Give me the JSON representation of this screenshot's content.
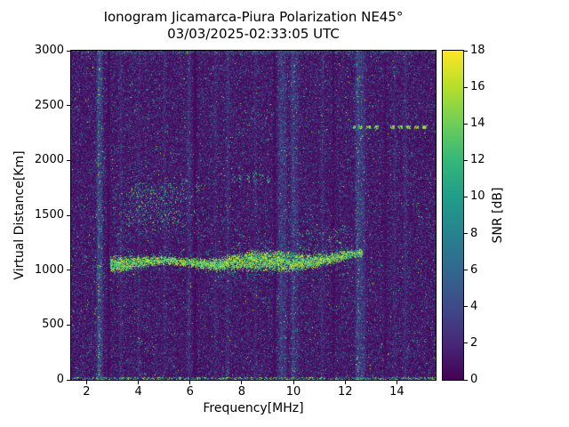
{
  "figure": {
    "title": "Ionogram Jicamarca-Piura Polarization NE45°",
    "subtitle": "03/03/2025-02:33:05 UTC"
  },
  "chart_data": {
    "type": "heatmap",
    "title": "Ionogram Jicamarca-Piura Polarization NE45°",
    "subtitle": "03/03/2025-02:33:05 UTC",
    "xlabel": "Frequency[MHz]",
    "ylabel": "Virtual Distance[Km]",
    "colorbar_label": "SNR [dB]",
    "xlim": [
      1.4,
      15.5
    ],
    "ylim": [
      0,
      3000
    ],
    "snr_range_db": [
      0,
      18
    ],
    "x_ticks": [
      2,
      4,
      6,
      8,
      10,
      12,
      14
    ],
    "y_ticks": [
      0,
      500,
      1000,
      1500,
      2000,
      2500,
      3000
    ],
    "colorbar_ticks": [
      0,
      2,
      4,
      6,
      8,
      10,
      12,
      14,
      16,
      18
    ],
    "legend_position": "right-colorbar",
    "grid": false,
    "colormap": "viridis",
    "colormap_stops": [
      "#440154",
      "#472878",
      "#3e4a89",
      "#31688e",
      "#26828e",
      "#1f9e89",
      "#35b779",
      "#6ece58",
      "#b5de2b",
      "#fde725"
    ],
    "seed": 20250303,
    "background_noise": {
      "dominant_snr_db": [
        0,
        2
      ],
      "speckle_snr_db": [
        2,
        18
      ],
      "description": "dark purple background with sparse blue/teal/yellow speckle noise"
    },
    "rfi_vertical_lines": [
      {
        "freq": 2.47,
        "boost": 3.0,
        "width": 0.05
      },
      {
        "freq": 2.58,
        "boost": 1.6,
        "width": 0.04
      },
      {
        "freq": 3.32,
        "boost": 0.9,
        "width": 0.04
      },
      {
        "freq": 4.02,
        "boost": 0.8,
        "width": 0.04
      },
      {
        "freq": 5.01,
        "boost": 0.9,
        "width": 0.04
      },
      {
        "freq": 5.96,
        "boost": 1.3,
        "width": 0.05
      },
      {
        "freq": 6.98,
        "boost": 0.8,
        "width": 0.04
      },
      {
        "freq": 7.46,
        "boost": 1.1,
        "width": 0.05
      },
      {
        "freq": 8.52,
        "boost": 0.7,
        "width": 0.04
      },
      {
        "freq": 9.52,
        "boost": 1.7,
        "width": 0.08
      },
      {
        "freq": 9.68,
        "boost": 1.1,
        "width": 0.05
      },
      {
        "freq": 9.99,
        "boost": 1.9,
        "width": 0.06
      },
      {
        "freq": 10.14,
        "boost": 1.0,
        "width": 0.05
      },
      {
        "freq": 11.12,
        "boost": 0.8,
        "width": 0.05
      },
      {
        "freq": 12.49,
        "boost": 2.4,
        "width": 0.06
      },
      {
        "freq": 12.63,
        "boost": 1.6,
        "width": 0.05
      },
      {
        "freq": 12.74,
        "boost": 1.1,
        "width": 0.04
      },
      {
        "freq": 13.92,
        "boost": 0.7,
        "width": 0.04
      },
      {
        "freq": 14.33,
        "boost": 1.0,
        "width": 0.05
      }
    ],
    "attenuated_columns": [
      {
        "freq": 2.85,
        "factor": 0.35,
        "width": 0.04
      },
      {
        "freq": 6.2,
        "factor": 0.3,
        "width": 0.05
      },
      {
        "freq": 9.27,
        "factor": 0.4,
        "width": 0.04
      },
      {
        "freq": 11.55,
        "factor": 0.45,
        "width": 0.04
      },
      {
        "freq": 13.55,
        "factor": 0.5,
        "width": 0.04
      }
    ],
    "echo_features": {
      "main_trace": {
        "freq_range": [
          2.92,
          12.68
        ],
        "alt_center_km": 1070,
        "alt_rise_after_mhz": 9.5,
        "rise_km_per_mhz": 22,
        "half_thickness_km": [
          45,
          105
        ],
        "snr_db": [
          9,
          18
        ],
        "density": 0.8
      },
      "spread_scatter": {
        "freq_range": [
          3.0,
          6.4
        ],
        "alt_range": [
          1300,
          1850
        ],
        "density": 0.07,
        "snr_db": [
          3,
          16
        ],
        "dense_core": {
          "freq_range": [
            3.6,
            5.7
          ],
          "alt_range": [
            1420,
            1760
          ],
          "density": 0.16
        }
      },
      "trace_plume": {
        "freq_range": [
          10.1,
          12.3
        ],
        "alt_range": [
          1150,
          1380
        ],
        "density": 0.09,
        "snr_db": [
          5,
          15
        ]
      },
      "upper_dashes": {
        "freq_range": [
          7.5,
          9.2
        ],
        "alt_range": [
          1795,
          1875
        ],
        "density": 0.3,
        "snr_db": [
          6,
          15
        ]
      },
      "dashed_line": {
        "freq_range": [
          12.3,
          15.3
        ],
        "altitude_km": 2300,
        "half_thickness_km": 16,
        "gap_freq_range": [
          13.45,
          13.75
        ],
        "snr_db": [
          11,
          18
        ]
      },
      "baseline": {
        "alt_max_km": 22,
        "density": 0.5,
        "snr_db": [
          3,
          17
        ]
      },
      "top_edge": {
        "alt_min_km": 2970,
        "density": 0.25,
        "snr_db": [
          2,
          10
        ]
      }
    }
  }
}
